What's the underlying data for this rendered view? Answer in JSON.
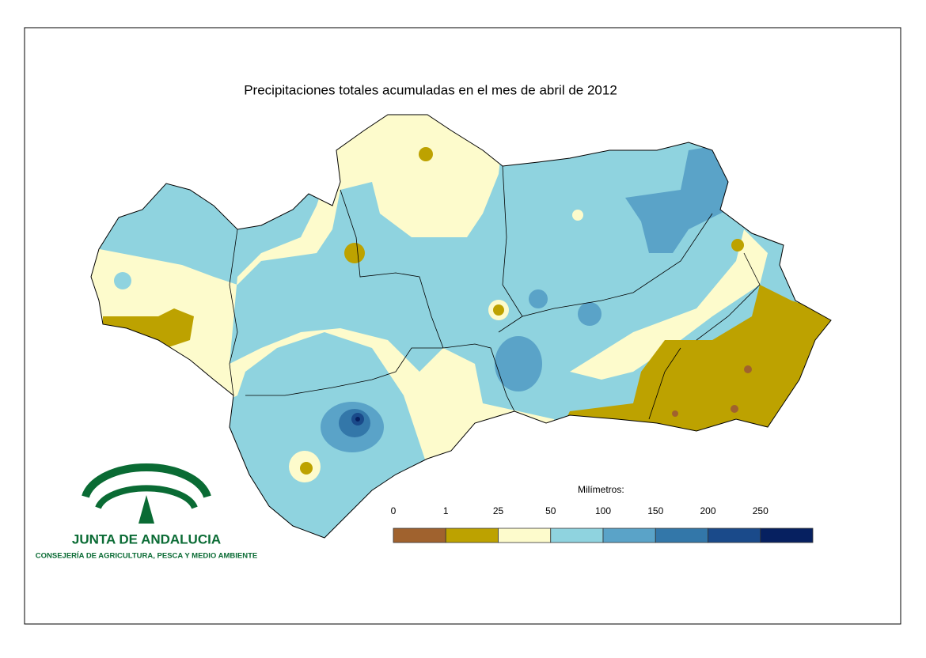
{
  "title": "Precipitaciones totales acumuladas en el mes de abril de 2012",
  "legend": {
    "title": "Milímetros:",
    "ticks": [
      0,
      1,
      25,
      50,
      100,
      150,
      200,
      250
    ],
    "colors": [
      "#a0622e",
      "#bda200",
      "#fdfbcc",
      "#8fd3df",
      "#5aa3c8",
      "#3377a9",
      "#1a4a8a",
      "#062060"
    ]
  },
  "logo": {
    "name": "JUNTA DE ANDALUCIA",
    "department": "CONSEJERÍA DE AGRICULTURA, PESCA Y MEDIO AMBIENTE"
  }
}
